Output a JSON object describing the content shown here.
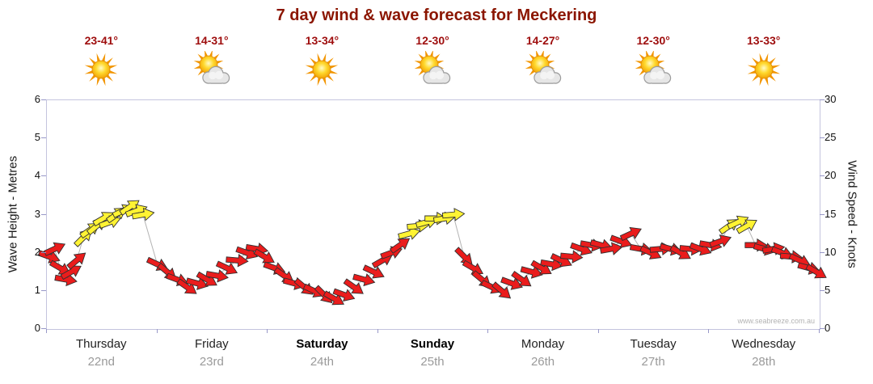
{
  "title": "7 day wind & wave forecast for Meckering",
  "watermark": "www.seabreeze.com.au",
  "colors": {
    "title": "#8b1500",
    "temps": "#9e0d0d",
    "red_arrow": "#ea1c1c",
    "yellow_arrow": "#fff333",
    "arrow_outline": "#303030",
    "connect_line": "#b4b4b4",
    "frame": "#c4c4de",
    "tick": "#9898c8"
  },
  "days": [
    {
      "name": "Thursday",
      "date": "22nd",
      "temps": "23-41°",
      "icon": "sun",
      "weekend": false
    },
    {
      "name": "Friday",
      "date": "23rd",
      "temps": "14-31°",
      "icon": "sun-cloud",
      "weekend": false
    },
    {
      "name": "Saturday",
      "date": "24th",
      "temps": "13-34°",
      "icon": "sun",
      "weekend": true
    },
    {
      "name": "Sunday",
      "date": "25th",
      "temps": "12-30°",
      "icon": "sun-cloud",
      "weekend": true
    },
    {
      "name": "Monday",
      "date": "26th",
      "temps": "14-27°",
      "icon": "sun-cloud",
      "weekend": false
    },
    {
      "name": "Tuesday",
      "date": "27th",
      "temps": "12-30°",
      "icon": "sun-cloud",
      "weekend": false
    },
    {
      "name": "Wednesday",
      "date": "28th",
      "temps": "13-33°",
      "icon": "sun",
      "weekend": false
    }
  ],
  "axes": {
    "left_label": "Wave Height - Metres",
    "right_label": "Wind Speed - Knots",
    "left_ticks": [
      0,
      1,
      2,
      3,
      4,
      5,
      6
    ],
    "right_ticks": [
      0,
      5,
      10,
      15,
      20,
      25,
      30
    ]
  },
  "chart_data": {
    "type": "wind-arrows",
    "title": "7 day wind & wave forecast for Meckering",
    "x_axis": {
      "unit": "days",
      "range": [
        0,
        7
      ],
      "categories": [
        "Thursday 22nd",
        "Friday 23rd",
        "Saturday 24th",
        "Sunday 25th",
        "Monday 26th",
        "Tuesday 27th",
        "Wednesday 28th"
      ]
    },
    "y_left_axis": {
      "label": "Wave Height - Metres",
      "range": [
        0,
        6
      ],
      "ticks": [
        0,
        1,
        2,
        3,
        4,
        5,
        6
      ]
    },
    "y_right_axis": {
      "label": "Wind Speed - Knots",
      "range": [
        0,
        30
      ],
      "ticks": [
        0,
        5,
        10,
        15,
        20,
        25,
        30
      ]
    },
    "series_axis": "right",
    "legend": "red arrow = moderate wind (under ~12 knots), yellow arrow = fresh wind (~12+ knots)",
    "point_format": [
      "time_days",
      "wind_speed_knots",
      "arrow_rotation_deg",
      "color r|y"
    ],
    "points": [
      [
        0.02,
        9.5,
        20,
        "r"
      ],
      [
        0.07,
        10.5,
        -25,
        "r"
      ],
      [
        0.12,
        8,
        30,
        "r"
      ],
      [
        0.17,
        6.5,
        10,
        "r"
      ],
      [
        0.22,
        7.5,
        -30,
        "r"
      ],
      [
        0.27,
        9,
        -40,
        "r"
      ],
      [
        0.33,
        12,
        -45,
        "y"
      ],
      [
        0.39,
        13,
        -35,
        "y"
      ],
      [
        0.45,
        13.5,
        -40,
        "y"
      ],
      [
        0.51,
        14.5,
        -30,
        "y"
      ],
      [
        0.57,
        14,
        -20,
        "y"
      ],
      [
        0.63,
        15,
        -35,
        "y"
      ],
      [
        0.69,
        15.5,
        -25,
        "y"
      ],
      [
        0.75,
        16,
        -35,
        "y"
      ],
      [
        0.81,
        15.5,
        -20,
        "y"
      ],
      [
        0.87,
        15,
        -10,
        "y"
      ],
      [
        1.0,
        8.5,
        25,
        "r"
      ],
      [
        1.09,
        7.5,
        40,
        "r"
      ],
      [
        1.18,
        6.5,
        20,
        "r"
      ],
      [
        1.27,
        5.5,
        35,
        "r"
      ],
      [
        1.36,
        6,
        15,
        "r"
      ],
      [
        1.45,
        6.5,
        30,
        "r"
      ],
      [
        1.54,
        7,
        10,
        "r"
      ],
      [
        1.63,
        8,
        25,
        "r"
      ],
      [
        1.72,
        9,
        5,
        "r"
      ],
      [
        1.81,
        10,
        20,
        "r"
      ],
      [
        1.9,
        10.5,
        10,
        "r"
      ],
      [
        1.97,
        9.5,
        30,
        "r"
      ],
      [
        2.06,
        8,
        20,
        "r"
      ],
      [
        2.15,
        7,
        35,
        "r"
      ],
      [
        2.24,
        6,
        15,
        "r"
      ],
      [
        2.33,
        5.5,
        40,
        "r"
      ],
      [
        2.42,
        5,
        25,
        "r"
      ],
      [
        2.51,
        4.5,
        45,
        "r"
      ],
      [
        2.6,
        4,
        30,
        "r"
      ],
      [
        2.69,
        4.5,
        20,
        "r"
      ],
      [
        2.78,
        5.5,
        35,
        "r"
      ],
      [
        2.87,
        6.5,
        15,
        "r"
      ],
      [
        2.96,
        7.5,
        25,
        "r"
      ],
      [
        3.04,
        9,
        -30,
        "r"
      ],
      [
        3.12,
        10,
        -20,
        "r"
      ],
      [
        3.2,
        11,
        -35,
        "r"
      ],
      [
        3.28,
        12.5,
        -15,
        "y"
      ],
      [
        3.36,
        13.5,
        -5,
        "y"
      ],
      [
        3.44,
        14,
        -15,
        "y"
      ],
      [
        3.52,
        14.5,
        0,
        "y"
      ],
      [
        3.6,
        14.5,
        -10,
        "y"
      ],
      [
        3.68,
        15,
        -5,
        "y"
      ],
      [
        3.78,
        9.5,
        45,
        "r"
      ],
      [
        3.86,
        8,
        30,
        "r"
      ],
      [
        3.94,
        6.5,
        40,
        "r"
      ],
      [
        4.03,
        5.5,
        25,
        "r"
      ],
      [
        4.12,
        5,
        40,
        "r"
      ],
      [
        4.21,
        6,
        20,
        "r"
      ],
      [
        4.3,
        6.5,
        35,
        "r"
      ],
      [
        4.39,
        7.5,
        15,
        "r"
      ],
      [
        4.48,
        8,
        30,
        "r"
      ],
      [
        4.57,
        8.5,
        10,
        "r"
      ],
      [
        4.66,
        9,
        25,
        "r"
      ],
      [
        4.75,
        9.5,
        5,
        "r"
      ],
      [
        4.84,
        10.5,
        20,
        "r"
      ],
      [
        4.93,
        11,
        10,
        "r"
      ],
      [
        5.02,
        11,
        15,
        "r"
      ],
      [
        5.11,
        10.5,
        -10,
        "r"
      ],
      [
        5.2,
        11.5,
        20,
        "r"
      ],
      [
        5.29,
        12.5,
        -25,
        "r"
      ],
      [
        5.38,
        10.5,
        10,
        "r"
      ],
      [
        5.47,
        10,
        25,
        "r"
      ],
      [
        5.56,
        10.5,
        -5,
        "r"
      ],
      [
        5.65,
        10.5,
        15,
        "r"
      ],
      [
        5.74,
        10,
        30,
        "r"
      ],
      [
        5.83,
        10.5,
        5,
        "r"
      ],
      [
        5.92,
        10.5,
        20,
        "r"
      ],
      [
        6.01,
        11,
        10,
        "r"
      ],
      [
        6.1,
        11.5,
        -20,
        "r"
      ],
      [
        6.18,
        13.5,
        -35,
        "y"
      ],
      [
        6.26,
        14,
        -25,
        "y"
      ],
      [
        6.34,
        13.5,
        -30,
        "y"
      ],
      [
        6.42,
        11,
        0,
        "r"
      ],
      [
        6.5,
        10.5,
        15,
        "r"
      ],
      [
        6.58,
        10.5,
        -10,
        "r"
      ],
      [
        6.66,
        10,
        20,
        "r"
      ],
      [
        6.74,
        9.5,
        5,
        "r"
      ],
      [
        6.82,
        9,
        25,
        "r"
      ],
      [
        6.9,
        8,
        15,
        "r"
      ],
      [
        6.97,
        7.5,
        30,
        "r"
      ]
    ]
  }
}
